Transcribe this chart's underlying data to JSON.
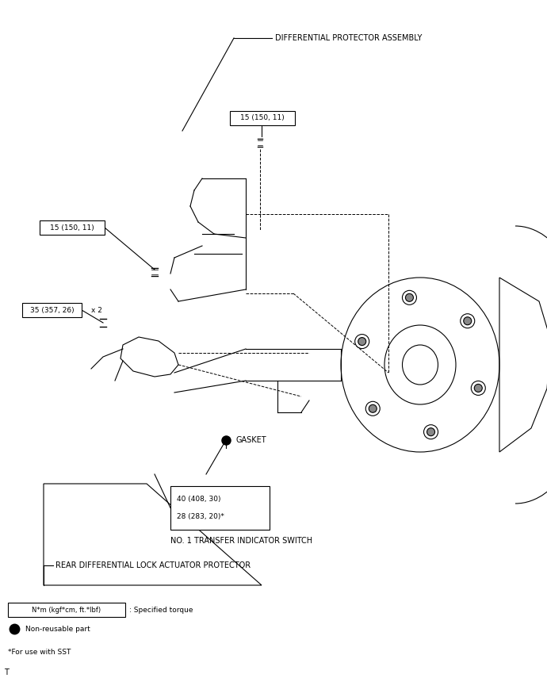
{
  "bg_color": "#ffffff",
  "fig_width": 6.9,
  "fig_height": 8.55,
  "labels": {
    "diff_protector": "DIFFERENTIAL PROTECTOR ASSEMBLY",
    "torque_15_top": "15 (150, 11)",
    "torque_15_mid": "15 (150, 11)",
    "torque_35": "35 (357, 26)",
    "x2": "x 2",
    "gasket": "GASKET",
    "torque_40": "40 (408, 30)",
    "torque_28": "28 (283, 20)*",
    "no1_switch": "NO. 1 TRANSFER INDICATOR SWITCH",
    "rear_diff_lock": "REAR DIFFERENTIAL LOCK ACTUATOR PROTECTOR",
    "legend_nm": "N*m (kgf*cm, ft.*lbf)",
    "legend_specified": ": Specified torque",
    "legend_nonreusable": "Non-reusable part",
    "legend_sst": "*For use with SST",
    "T": "T"
  }
}
